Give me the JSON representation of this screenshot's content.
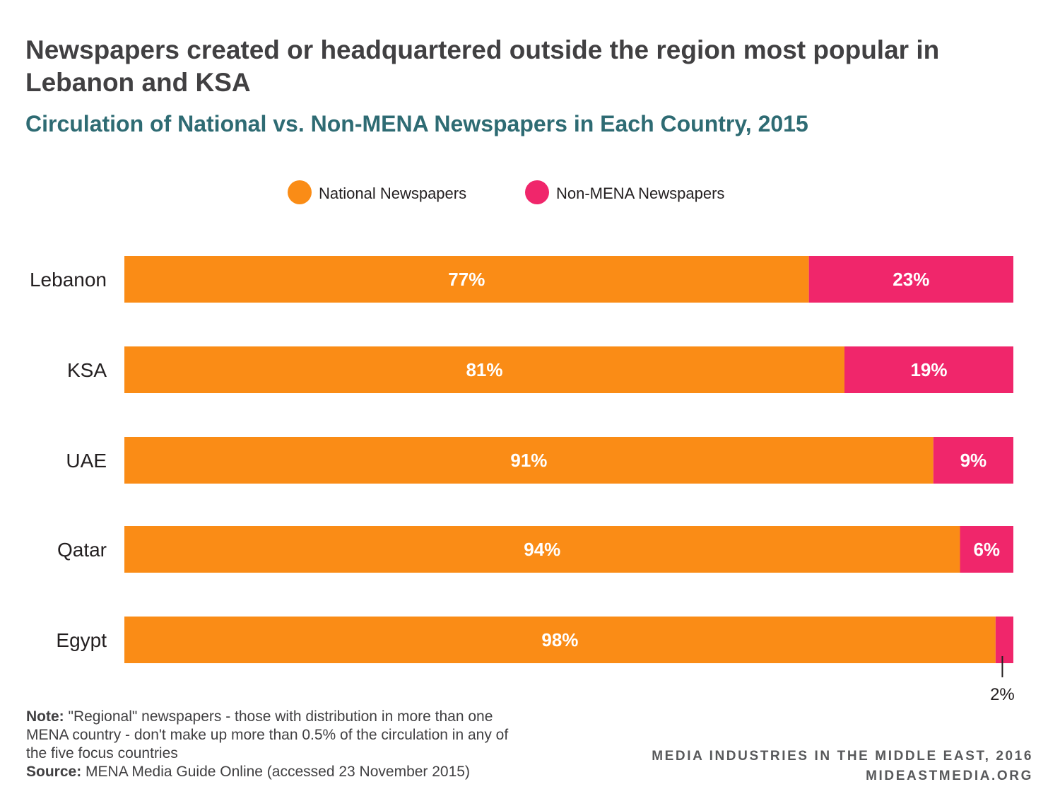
{
  "title": "Newspapers created or headquartered outside the region most popular in Lebanon and KSA",
  "subtitle": "Circulation of National vs. Non-MENA Newspapers in Each Country, 2015",
  "chart_data": {
    "type": "bar",
    "orientation": "horizontal",
    "stacked": true,
    "categories": [
      "Lebanon",
      "KSA",
      "UAE",
      "Qatar",
      "Egypt"
    ],
    "series": [
      {
        "name": "National Newspapers",
        "color": "#fa8c16",
        "values": [
          77,
          81,
          91,
          94,
          98
        ],
        "labels": [
          "77%",
          "81%",
          "91%",
          "94%",
          "98%"
        ]
      },
      {
        "name": "Non-MENA Newspapers",
        "color": "#f0266b",
        "values": [
          23,
          19,
          9,
          6,
          2
        ],
        "labels": [
          "23%",
          "19%",
          "9%",
          "6%",
          "2%"
        ]
      }
    ],
    "xlim": [
      0,
      100
    ],
    "legend_position": "top-center",
    "grid": false
  },
  "notes": {
    "note_label": "Note:",
    "note_text": " \"Regional\" newspapers - those with distribution in more than one MENA country - don't make up more than 0.5% of the circulation in any of the five focus countries",
    "source_label": "Source:",
    "source_text": " MENA Media Guide Online (accessed 23 November 2015)"
  },
  "credit": {
    "line1": "MEDIA INDUSTRIES IN THE MIDDLE EAST, 2016",
    "line2": "MIDEASTMEDIA.ORG"
  }
}
